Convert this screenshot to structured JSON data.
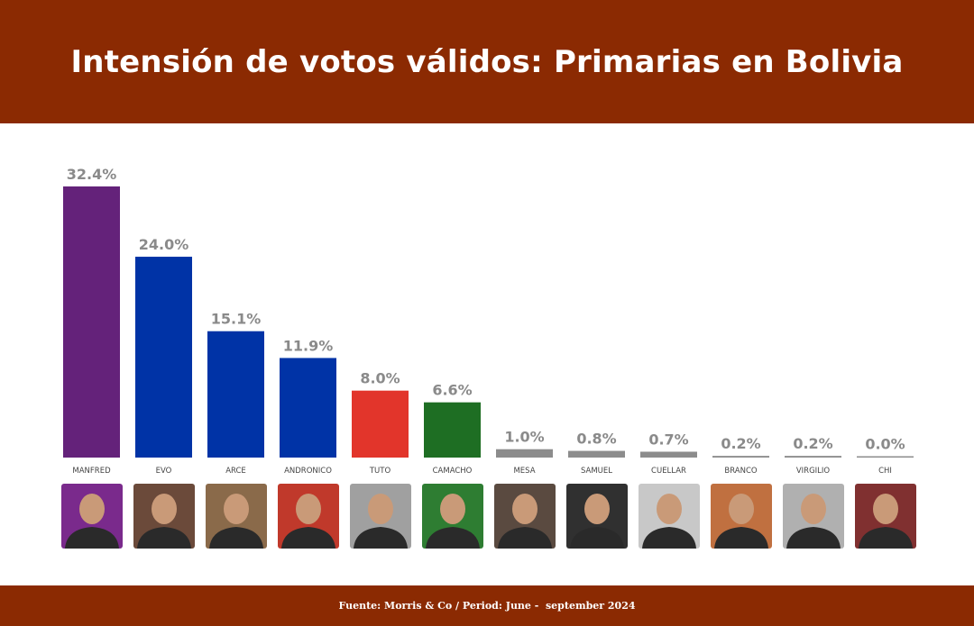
{
  "header": {
    "title": "Intensión de votos válidos: Primarias en Bolivia"
  },
  "footer": {
    "source": "Fuente: Morris & Co / Period: June -  september 2024"
  },
  "chart_data": {
    "type": "bar",
    "title": "Intensión de votos válidos: Primarias en Bolivia",
    "categories": [
      "MANFRED",
      "EVO",
      "ARCE",
      "ANDRONICO",
      "TUTO",
      "CAMACHO",
      "MESA",
      "SAMUEL",
      "CUELLAR",
      "BRANCO",
      "VIRGILIO",
      "CHI"
    ],
    "values": [
      32.4,
      24.0,
      15.1,
      11.9,
      8.0,
      6.6,
      1.0,
      0.8,
      0.7,
      0.2,
      0.2,
      0.0
    ],
    "value_labels": [
      "32.4%",
      "24.0%",
      "15.1%",
      "11.9%",
      "8.0%",
      "6.6%",
      "1.0%",
      "0.8%",
      "0.7%",
      "0.2%",
      "0.2%",
      "0.0%"
    ],
    "bar_colors": [
      "#64227A",
      "#0033A6",
      "#0033A6",
      "#0033A6",
      "#E2352B",
      "#1E6E23",
      "#8C8C8C",
      "#8C8C8C",
      "#8C8C8C",
      "#8C8C8C",
      "#8C8C8C",
      "#8C8C8C"
    ],
    "photo_colors": [
      "#7a2a8c",
      "#6b4a3a",
      "#8a6a4a",
      "#c0392b",
      "#a0a0a0",
      "#2e7d32",
      "#5a4a40",
      "#303030",
      "#c8c8c8",
      "#c07040",
      "#b0b0b0",
      "#803030"
    ],
    "ylim": [
      0,
      35
    ],
    "xlabel": "",
    "ylabel": "",
    "grid": false,
    "legend": "none"
  },
  "colors": {
    "header_bg": "#8B2A02",
    "footer_bg": "#8B2A02",
    "text_light": "#ffffff"
  }
}
